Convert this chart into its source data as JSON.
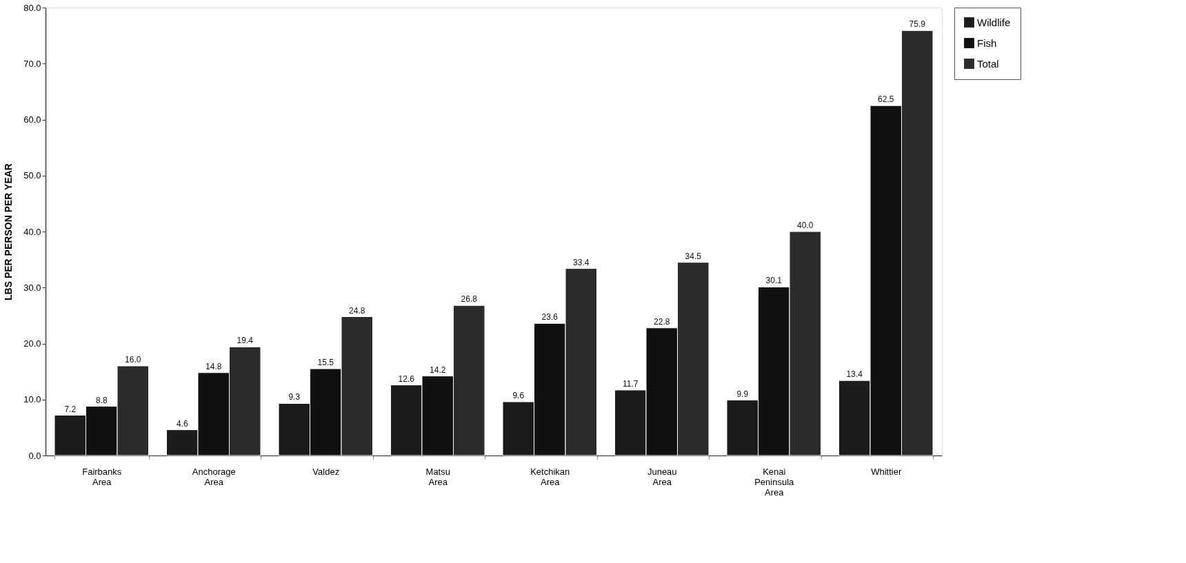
{
  "chart_data": {
    "type": "bar",
    "ylabel": "LBS PER PERSON PER YEAR",
    "categories": [
      "Fairbanks Area",
      "Anchorage Area",
      "Valdez",
      "Matsu Area",
      "Ketchikan Area",
      "Juneau Area",
      "Kenai Peninsula Area",
      "Whittier"
    ],
    "series": [
      {
        "name": "Wildlife",
        "color": "#1c1c1c",
        "values": [
          7.2,
          4.6,
          9.3,
          12.6,
          9.6,
          11.7,
          9.9,
          13.4
        ],
        "value_labels": [
          "7.2",
          "4.6",
          "9.3",
          "12.6",
          "9.6",
          "11.7",
          "9.9",
          "13.4"
        ]
      },
      {
        "name": "Fish",
        "color": "#101010",
        "values": [
          8.8,
          14.8,
          15.5,
          14.2,
          23.6,
          22.8,
          30.1,
          62.5
        ],
        "value_labels": [
          "8.8",
          "14.8",
          "15.5",
          "14.2",
          "23.6",
          "22.8",
          "30.1",
          "62.5"
        ]
      },
      {
        "name": "Total",
        "color": "#2b2b2b",
        "values": [
          16.0,
          19.4,
          24.8,
          26.8,
          33.4,
          34.5,
          40.0,
          75.9
        ],
        "value_labels": [
          "16.0",
          "19.4",
          "24.8",
          "26.8",
          "33.4",
          "34.5",
          "40.0",
          "75.9"
        ]
      }
    ],
    "ylim": [
      0,
      80
    ],
    "yticks": [
      {
        "value": 0,
        "label": "0.0"
      },
      {
        "value": 10,
        "label": "10.0"
      },
      {
        "value": 20,
        "label": "20.0"
      },
      {
        "value": 30,
        "label": "30.0"
      },
      {
        "value": 40,
        "label": "40.0"
      },
      {
        "value": 50,
        "label": "50.0"
      },
      {
        "value": 60,
        "label": "60.0"
      },
      {
        "value": 70,
        "label": "70.0"
      },
      {
        "value": 80,
        "label": "80.0"
      }
    ],
    "grid": false,
    "legend": "right"
  }
}
